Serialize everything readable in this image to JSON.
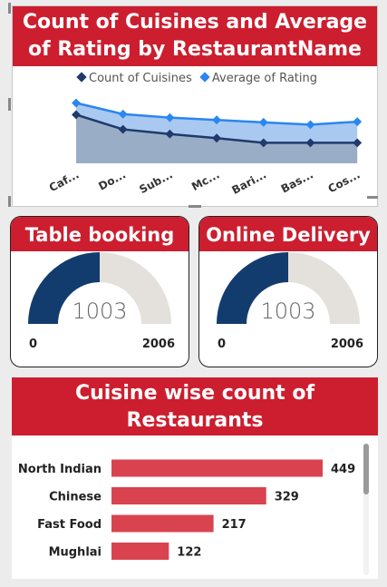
{
  "line_card": {
    "title_line1": "Count of Cuisines and Average",
    "title_line2": "of Rating by RestaurantName",
    "legend": [
      "Count of Cuisines",
      "Average of Rating"
    ]
  },
  "table_booking": {
    "title": "Table booking",
    "value": "1003",
    "min": "0",
    "max": "2006"
  },
  "online_delivery": {
    "title": "Online Delivery",
    "value": "1003",
    "min": "0",
    "max": "2006"
  },
  "bar_card": {
    "title_line1": "Cuisine wise count of",
    "title_line2": "Restaurants"
  },
  "colors": {
    "header_red": "#cc1e2f",
    "count_series": "#1f3a6b",
    "rating_series": "#2a86f0",
    "gauge_fill": "#133c6e",
    "gauge_track": "#e4e0db",
    "bar": "#d9434f"
  },
  "chart_data": [
    {
      "type": "line",
      "title": "Count of Cuisines and Average of Rating by RestaurantName",
      "categories": [
        "Caf...",
        "Do...",
        "Sub...",
        "Mc...",
        "Bari...",
        "Bas...",
        "Cos..."
      ],
      "series": [
        {
          "name": "Count of Cuisines",
          "values": [
            83,
            58,
            50,
            43,
            35,
            35,
            35
          ]
        },
        {
          "name": "Average of Rating",
          "values": [
            103,
            84,
            78,
            74,
            70,
            66,
            71
          ]
        }
      ],
      "legend_position": "top-center",
      "grid": false
    },
    {
      "type": "gauge",
      "title": "Table booking",
      "value": 1003,
      "min": 0,
      "max": 2006
    },
    {
      "type": "gauge",
      "title": "Online Delivery",
      "value": 1003,
      "min": 0,
      "max": 2006
    },
    {
      "type": "bar",
      "orientation": "horizontal",
      "title": "Cuisine wise count of Restaurants",
      "categories": [
        "North Indian",
        "Chinese",
        "Fast Food",
        "Mughlai"
      ],
      "values": [
        449,
        329,
        217,
        122
      ]
    }
  ]
}
